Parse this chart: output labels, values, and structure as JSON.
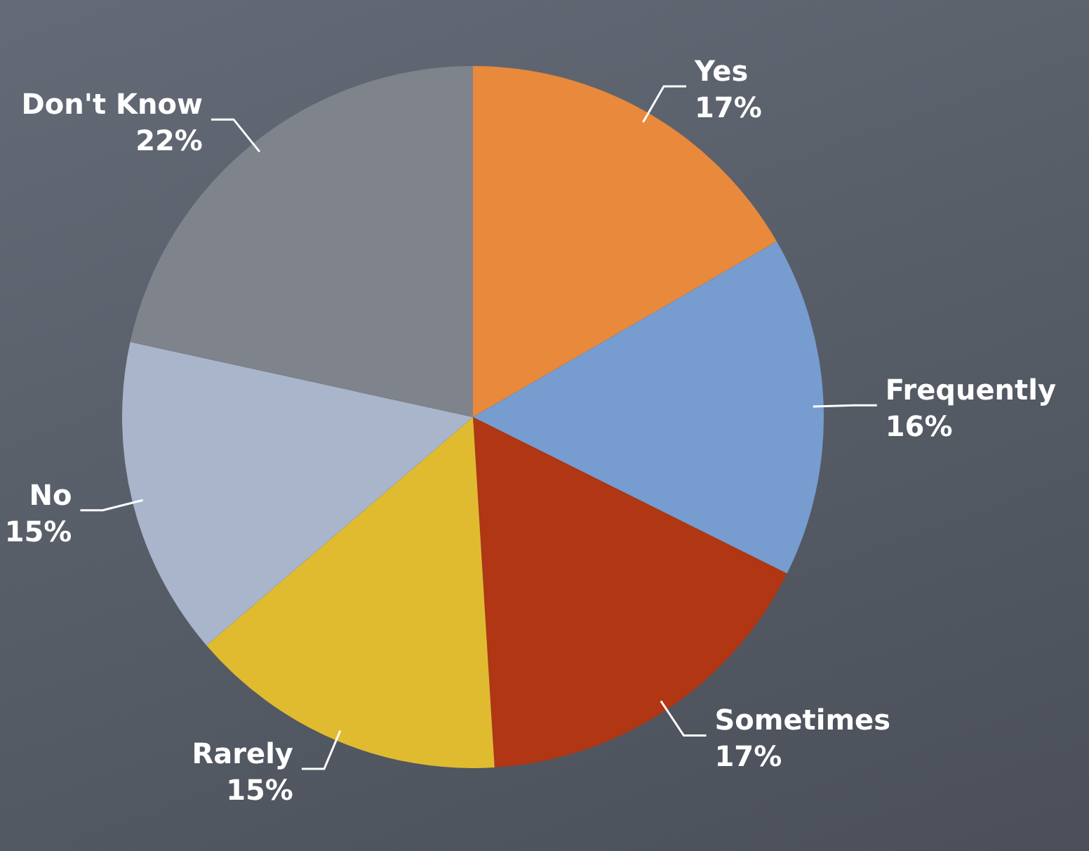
{
  "chart_data": {
    "type": "pie",
    "categories": [
      "Yes",
      "Frequently",
      "Sometimes",
      "Rarely",
      "No",
      "Don't Know"
    ],
    "values": [
      17,
      16,
      17,
      15,
      15,
      22
    ],
    "value_labels": [
      "17%",
      "16%",
      "17%",
      "15%",
      "15%",
      "22%"
    ],
    "colors": [
      "#e8893b",
      "#779ccf",
      "#b03614",
      "#e0bb30",
      "#a9b5ca",
      "#7f838b"
    ],
    "legend": false
  }
}
